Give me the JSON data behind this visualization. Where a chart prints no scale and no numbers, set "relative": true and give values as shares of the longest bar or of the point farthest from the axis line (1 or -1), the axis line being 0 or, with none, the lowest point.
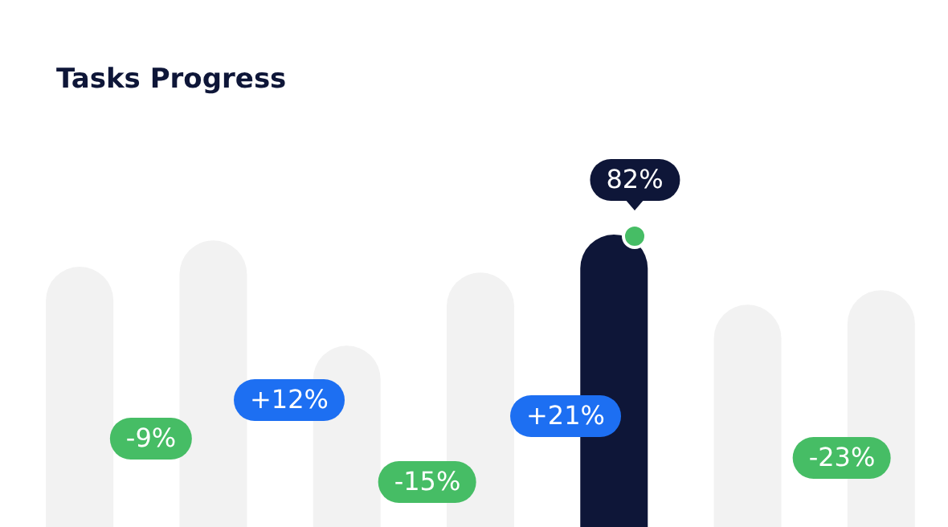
{
  "chart_data": {
    "type": "bar",
    "title": "Tasks Progress",
    "relative": true,
    "categories": [
      null,
      null,
      null,
      null,
      null,
      null,
      null
    ],
    "values": [
      0.89,
      0.98,
      0.62,
      0.87,
      1,
      0.76,
      0.81
    ],
    "colors": [
      "#f2f2f2",
      "#f2f2f2",
      "#f2f2f2",
      "#f2f2f2",
      "#0e1638",
      "#f2f2f2",
      "#f2f2f2"
    ],
    "annotations": [
      "-9%",
      "+12%",
      "-15%",
      "+21%",
      "-23%",
      "82%"
    ]
  }
}
